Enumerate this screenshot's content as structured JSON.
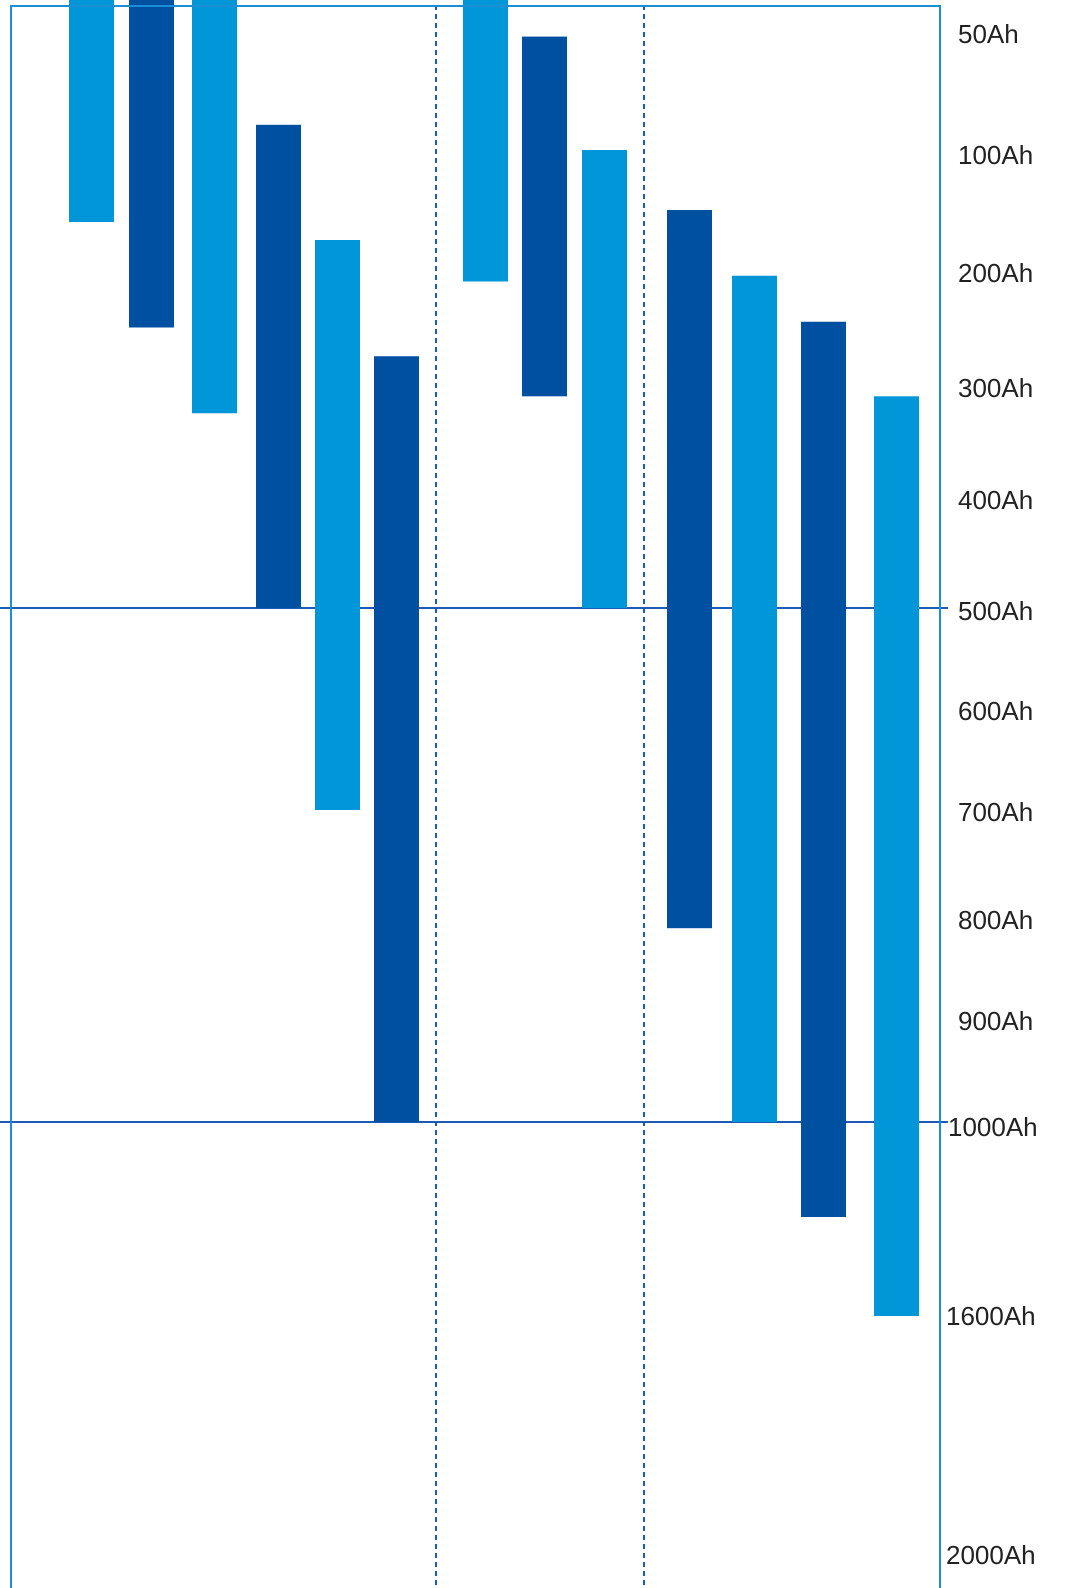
{
  "chart_data": {
    "type": "bar",
    "title": "",
    "xlabel": "",
    "ylabel": "",
    "y_axis_ticks": [
      "50Ah",
      "100Ah",
      "200Ah",
      "300Ah",
      "400Ah",
      "500Ah",
      "600Ah",
      "700Ah",
      "800Ah",
      "900Ah",
      "1000Ah",
      "1600Ah",
      "2000Ah"
    ],
    "y_axis_values_ah": [
      50,
      100,
      200,
      300,
      400,
      500,
      600,
      700,
      800,
      900,
      1000,
      1600,
      2000
    ],
    "y_axis_position": "right",
    "y_axis_direction": "increasing-downward",
    "y_axis_scale": "piecewise-non-linear",
    "groups": 3,
    "gridlines": {
      "horizontal_solid_at_ah": [
        500,
        1000
      ],
      "vertical_dashed_group_separators": true
    },
    "colors": {
      "dark": "#0050a2",
      "light": "#0096d8",
      "frame": "#1a8fd6",
      "grid": "#1a5bb8"
    },
    "ranges": [
      {
        "group": 1,
        "color": "light",
        "from_ah": 40,
        "to_ah": 160
      },
      {
        "group": 1,
        "color": "dark",
        "from_ah": 40,
        "to_ah": 250
      },
      {
        "group": 1,
        "color": "light",
        "from_ah": 40,
        "to_ah": 325
      },
      {
        "group": 1,
        "color": "dark",
        "from_ah": 90,
        "to_ah": 500
      },
      {
        "group": 1,
        "color": "light",
        "from_ah": 175,
        "to_ah": 700
      },
      {
        "group": 1,
        "color": "dark",
        "from_ah": 275,
        "to_ah": 1000
      },
      {
        "group": 2,
        "color": "light",
        "from_ah": 40,
        "to_ah": 210
      },
      {
        "group": 2,
        "color": "dark",
        "from_ah": 55,
        "to_ah": 310
      },
      {
        "group": 2,
        "color": "light",
        "from_ah": 100,
        "to_ah": 500
      },
      {
        "group": 3,
        "color": "dark",
        "from_ah": 150,
        "to_ah": 810
      },
      {
        "group": 3,
        "color": "light",
        "from_ah": 205,
        "to_ah": 1000
      },
      {
        "group": 3,
        "color": "dark",
        "from_ah": 245,
        "to_ah": 1300
      },
      {
        "group": 3,
        "color": "light",
        "from_ah": 310,
        "to_ah": 1600
      }
    ]
  }
}
